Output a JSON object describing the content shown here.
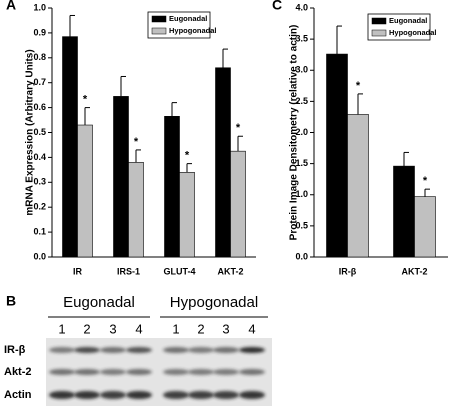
{
  "chart_data": [
    {
      "type": "bar",
      "panel": "A",
      "ylabel": "mRNA Expression (Arbitrary Units)",
      "categories": [
        "IR",
        "IRS-1",
        "GLUT-4",
        "AKT-2"
      ],
      "series": [
        {
          "name": "Eugonadal",
          "color": "#000000",
          "values": [
            0.885,
            0.645,
            0.565,
            0.76
          ],
          "errors": [
            0.085,
            0.08,
            0.055,
            0.075
          ]
        },
        {
          "name": "Hypogonadal",
          "color": "#c0c0c0",
          "values": [
            0.53,
            0.38,
            0.34,
            0.425
          ],
          "errors": [
            0.07,
            0.05,
            0.035,
            0.06
          ]
        }
      ],
      "annotations": [
        "*",
        "*",
        "*",
        "*"
      ],
      "ylim": [
        0,
        1.0
      ],
      "yticks": [
        {
          "value": 0,
          "label": "0.0"
        },
        0.1,
        0.2,
        0.3,
        0.4,
        0.5,
        0.6,
        0.7,
        0.8,
        0.9,
        {
          "value": 1.0,
          "label": "1.0"
        }
      ],
      "legend": "top-right"
    },
    {
      "type": "bar",
      "panel": "C",
      "ylabel": "Protein Image Densitometry (relative to actin)",
      "categories": [
        "IR-β",
        "AKT-2"
      ],
      "series": [
        {
          "name": "Eugonadal",
          "color": "#000000",
          "values": [
            3.26,
            1.46
          ],
          "errors": [
            0.45,
            0.22
          ]
        },
        {
          "name": "Hypogonadal",
          "color": "#c0c0c0",
          "values": [
            2.29,
            0.97
          ],
          "errors": [
            0.33,
            0.12
          ]
        }
      ],
      "annotations": [
        "*",
        "*"
      ],
      "ylim": [
        0,
        4.0
      ],
      "yticks": [
        {
          "value": 0,
          "label": "0.0"
        },
        0.5,
        {
          "value": 1.0,
          "label": "1.0"
        },
        1.5,
        {
          "value": 2.0,
          "label": "2.0"
        },
        2.5,
        {
          "value": 3.0,
          "label": "3.0"
        },
        3.5,
        {
          "value": 4.0,
          "label": "4.0"
        }
      ],
      "legend": "top-right"
    }
  ],
  "blot": {
    "panel": "B",
    "groups": [
      "Eugonadal",
      "Hypogonadal"
    ],
    "lanes": [
      "1",
      "2",
      "3",
      "4",
      "1",
      "2",
      "3",
      "4"
    ],
    "rows": [
      "IR-β",
      "Akt-2",
      "Actin"
    ]
  }
}
